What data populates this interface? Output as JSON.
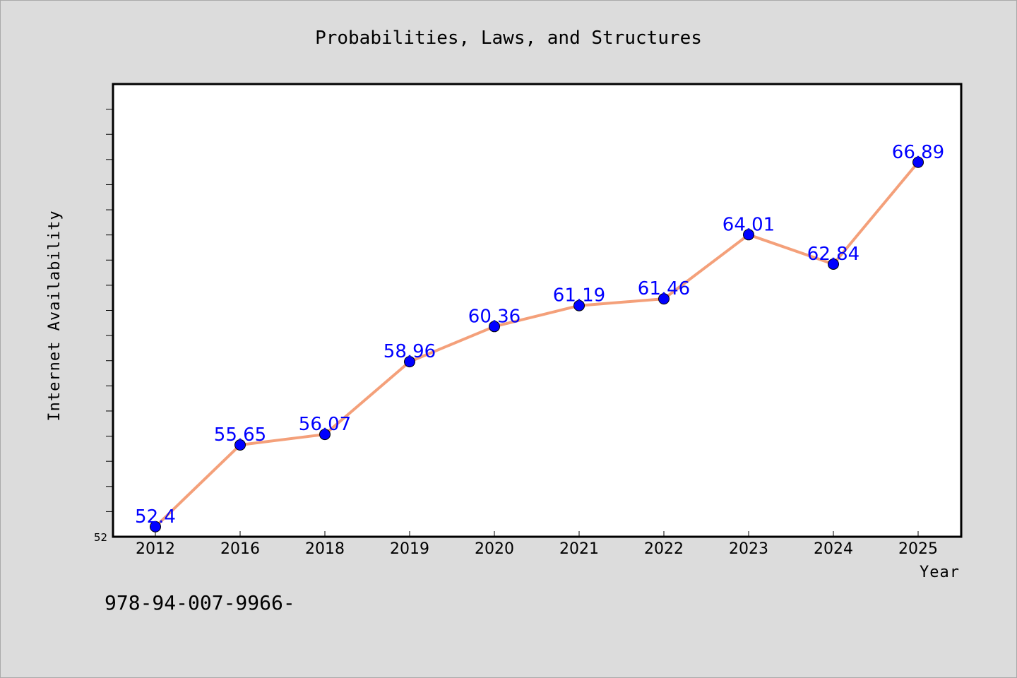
{
  "chart_data": {
    "type": "line",
    "title": "Probabilities, Laws, and Structures",
    "xlabel": "Year",
    "ylabel": "Internet Availability",
    "categories": [
      "2012",
      "2016",
      "2018",
      "2019",
      "2020",
      "2021",
      "2022",
      "2023",
      "2024",
      "2025"
    ],
    "series": [
      {
        "values": [
          52.4,
          55.65,
          56.07,
          58.96,
          60.36,
          61.19,
          61.46,
          64.01,
          62.84,
          66.89
        ],
        "line_color": "#f4a07a",
        "marker_color": "#0000ff"
      }
    ],
    "data_labels": [
      "52.4",
      "55.65",
      "56.07",
      "58.96",
      "60.36",
      "61.19",
      "61.46",
      "64.01",
      "62.84",
      "66.89"
    ],
    "ylim": [
      52,
      70
    ],
    "y_tick_labels": [
      "52"
    ],
    "grid": false,
    "legend": "none",
    "footer_text": "978-94-007-9966-"
  },
  "colors": {
    "background": "#dcdcdc",
    "plot_area": "#ffffff",
    "line": "#f4a07a",
    "marker": "#0000ff",
    "data_label": "#0000ff"
  }
}
